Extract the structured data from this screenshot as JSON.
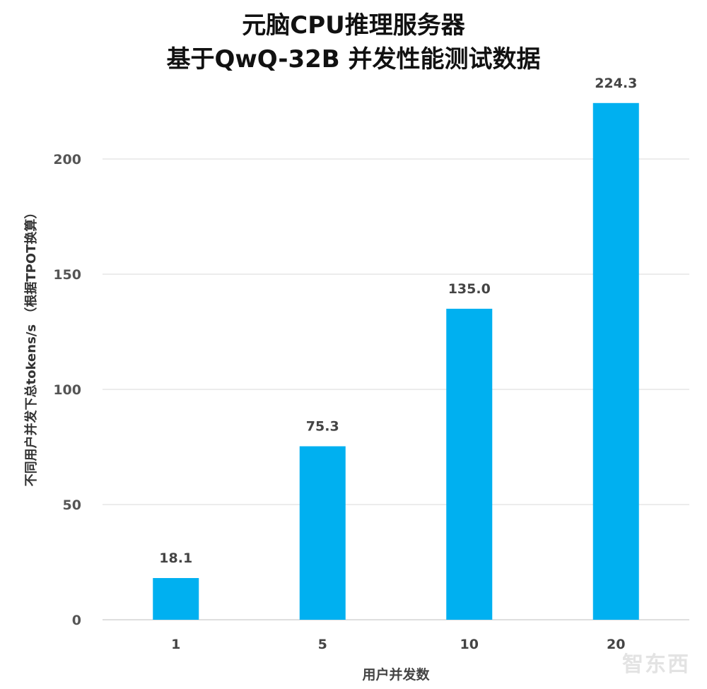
{
  "chart_data": {
    "type": "bar",
    "title": "元脑CPU推理服务器",
    "subtitle": "基于QwQ-32B 并发性能测试数据",
    "xlabel": "用户并发数",
    "ylabel": "不同用户并发下总tokens/s （根据TPOT换算）",
    "categories": [
      "1",
      "5",
      "10",
      "20"
    ],
    "values": [
      18.1,
      75.3,
      135.0,
      224.3
    ],
    "data_labels": [
      "18.1",
      "75.3",
      "135.0",
      "224.3"
    ],
    "yticks": [
      0,
      50,
      100,
      150,
      200
    ],
    "ylim": [
      0,
      230
    ],
    "grid": true,
    "legend": "none",
    "bar_color": "#00B0F0"
  },
  "watermark": "智东西 zhidx.com"
}
